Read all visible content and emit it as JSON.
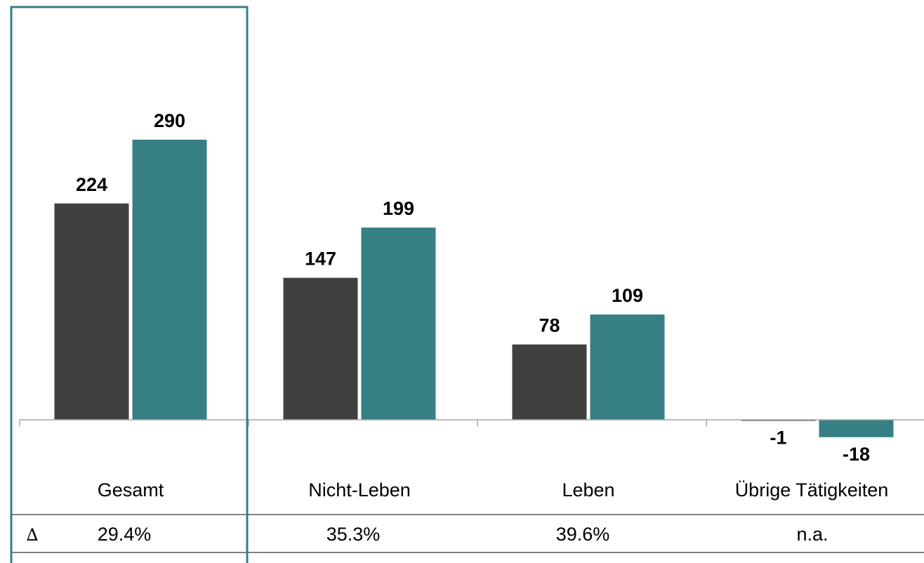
{
  "colors": {
    "series_prev": "#404040",
    "series_curr": "#367f84",
    "highlight_frame": "#367f84",
    "axis": "#a6a6a6",
    "table_line": "#808080"
  },
  "chart_data": {
    "type": "bar",
    "categories": [
      "Gesamt",
      "Nicht-Leben",
      "Leben",
      "Übrige Tätigkeiten"
    ],
    "series": [
      {
        "values": [
          224,
          147,
          78,
          -1
        ],
        "labels": [
          "224",
          "147",
          "78",
          "-1"
        ]
      },
      {
        "values": [
          290,
          199,
          109,
          -18
        ],
        "labels": [
          "290",
          "199",
          "109",
          "-18"
        ]
      }
    ],
    "ylim": [
      -40,
      330
    ],
    "grid": false,
    "legend": "none",
    "highlighted_category": "Gesamt"
  },
  "delta_row": {
    "symbol": "∆",
    "values": [
      "29.4%",
      "35.3%",
      "39.6%",
      "n.a."
    ]
  }
}
